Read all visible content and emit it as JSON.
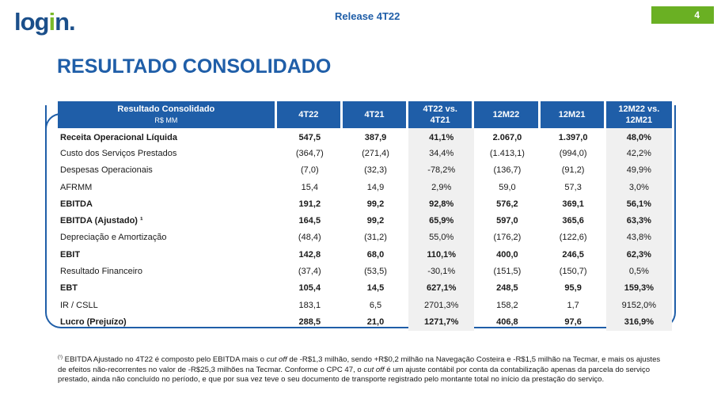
{
  "header": {
    "logo_text_main": "log",
    "logo_text_i": "i",
    "logo_text_end": "n.",
    "release": "Release 4T22",
    "page_number": "4"
  },
  "title": "RESULTADO CONSOLIDADO",
  "table": {
    "header_label": "Resultado Consolidado",
    "header_sublabel": "R$ MM",
    "columns": [
      "4T22",
      "4T21",
      "4T22 vs. 4T21",
      "12M22",
      "12M21",
      "12M22 vs. 12M21"
    ],
    "rows": [
      {
        "label": "Receita Operacional Líquida",
        "values": [
          "547,5",
          "387,9",
          "41,1%",
          "2.067,0",
          "1.397,0",
          "48,0%"
        ],
        "bold": true
      },
      {
        "label": "Custo dos Serviços Prestados",
        "values": [
          "(364,7)",
          "(271,4)",
          "34,4%",
          "(1.413,1)",
          "(994,0)",
          "42,2%"
        ],
        "bold": false
      },
      {
        "label": "Despesas Operacionais",
        "values": [
          "(7,0)",
          "(32,3)",
          "-78,2%",
          "(136,7)",
          "(91,2)",
          "49,9%"
        ],
        "bold": false
      },
      {
        "label": "AFRMM",
        "values": [
          "15,4",
          "14,9",
          "2,9%",
          "59,0",
          "57,3",
          "3,0%"
        ],
        "bold": false
      },
      {
        "label": "EBITDA",
        "values": [
          "191,2",
          "99,2",
          "92,8%",
          "576,2",
          "369,1",
          "56,1%"
        ],
        "bold": true
      },
      {
        "label": "EBITDA (Ajustado) ¹",
        "values": [
          "164,5",
          "99,2",
          "65,9%",
          "597,0",
          "365,6",
          "63,3%"
        ],
        "bold": true
      },
      {
        "label": "Depreciação e Amortização",
        "values": [
          "(48,4)",
          "(31,2)",
          "55,0%",
          "(176,2)",
          "(122,6)",
          "43,8%"
        ],
        "bold": false
      },
      {
        "label": "EBIT",
        "values": [
          "142,8",
          "68,0",
          "110,1%",
          "400,0",
          "246,5",
          "62,3%"
        ],
        "bold": true
      },
      {
        "label": "Resultado Financeiro",
        "values": [
          "(37,4)",
          "(53,5)",
          "-30,1%",
          "(151,5)",
          "(150,7)",
          "0,5%"
        ],
        "bold": false
      },
      {
        "label": "EBT",
        "values": [
          "105,4",
          "14,5",
          "627,1%",
          "248,5",
          "95,9",
          "159,3%"
        ],
        "bold": true
      },
      {
        "label": "IR / CSLL",
        "values": [
          "183,1",
          "6,5",
          "2701,3%",
          "158,2",
          "1,7",
          "9152,0%"
        ],
        "bold": false
      },
      {
        "label": "Lucro (Prejuízo)",
        "values": [
          "288,5",
          "21,0",
          "1271,7%",
          "406,8",
          "97,6",
          "316,9%"
        ],
        "bold": true
      }
    ]
  },
  "footnote": {
    "marker": "(¹)",
    "part1": " EBITDA Ajustado no 4T22 é composto pelo EBITDA mais o ",
    "italic1": "cut off",
    "part2": " de -R$1,3 milhão, sendo +R$0,2 milhão na Navegação Costeira e -R$1,5 milhão na Tecmar, e mais os ajustes de efeitos não-recorrentes no valor de -R$25,3 milhões na Tecmar. Conforme o CPC 47, o ",
    "italic2": "cut off",
    "part3": " é um ajuste contábil por conta da contabilização apenas da parcela do serviço prestado, ainda não concluído no período, e que por sua vez teve o seu documento de transporte registrado pelo montante total no início da prestação do serviço."
  }
}
